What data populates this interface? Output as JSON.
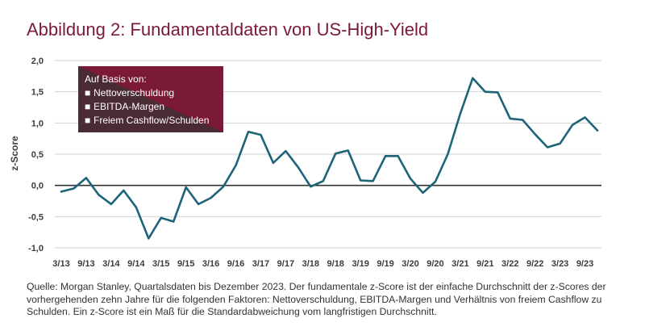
{
  "title": "Abbildung 2: Fundamentaldaten von US-High-Yield",
  "source": "Quelle: Morgan Stanley, Quartalsdaten bis Dezember 2023. Der fundamentale z-Score ist der einfache Durchschnitt der z-Scores der vorhergehenden zehn Jahre für die folgenden Faktoren: Nettoverschuldung, EBITDA-Margen und Verhältnis von freiem Cashflow zu Schulden. Ein z-Score ist ein Maß für die Standardabweichung vom langfristigen Durchschnitt.",
  "legend": {
    "heading": "Auf Basis von:",
    "items": [
      "Nettoverschuldung",
      "EBITDA-Margen",
      "Freiem Cashflow/Schulden"
    ],
    "bullet": "■"
  },
  "colors": {
    "title": "#7b1a36",
    "line": "#1d6478",
    "legend_dark": "#4a2a33",
    "legend_accent": "#7a1a36",
    "grid": "#d2d2d2",
    "zero_line": "#333333"
  },
  "chart_data": {
    "type": "line",
    "title": "",
    "xlabel": "",
    "ylabel": "z-Score",
    "ylim": [
      -1.0,
      2.0
    ],
    "yticks": [
      "2,0",
      "1,5",
      "1,0",
      "0,5",
      "0,0",
      "-0,5",
      "-1,0"
    ],
    "ytick_values": [
      2.0,
      1.5,
      1.0,
      0.5,
      0.0,
      -0.5,
      -1.0
    ],
    "xtick_labels": [
      "3/13",
      "9/13",
      "3/14",
      "9/14",
      "3/15",
      "9/15",
      "3/16",
      "9/16",
      "3/17",
      "9/17",
      "3/18",
      "9/18",
      "3/19",
      "9/19",
      "3/20",
      "9/20",
      "3/21",
      "9/21",
      "3/22",
      "9/22",
      "3/23",
      "9/23"
    ],
    "grid": "horizontal",
    "legend_position": "top-left",
    "series": [
      {
        "values": [
          -0.1,
          -0.05,
          0.12,
          -0.15,
          -0.3,
          -0.08,
          -0.35,
          -0.85,
          -0.52,
          -0.58,
          -0.03,
          -0.3,
          -0.2,
          -0.02,
          0.32,
          0.86,
          0.81,
          0.36,
          0.55,
          0.29,
          -0.02,
          0.07,
          0.51,
          0.56,
          0.08,
          0.07,
          0.47,
          0.47,
          0.11,
          -0.12,
          0.06,
          0.5,
          1.15,
          1.72,
          1.5,
          1.49,
          1.07,
          1.05,
          0.82,
          0.61,
          0.67,
          0.97,
          1.09,
          0.88
        ]
      }
    ]
  }
}
